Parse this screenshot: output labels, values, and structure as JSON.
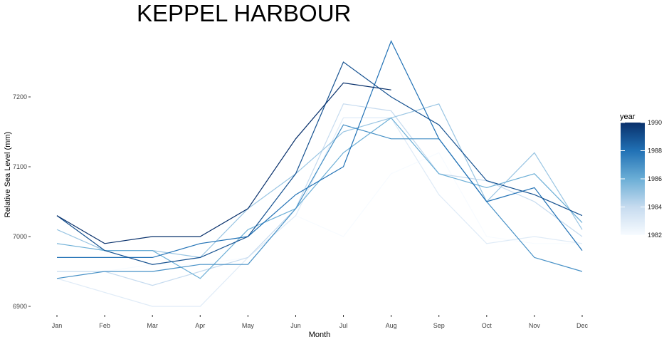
{
  "chart_data": {
    "type": "line",
    "title": "KEPPEL HARBOUR",
    "xlabel": "Month",
    "ylabel": "Relative Sea Level (mm)",
    "categories": [
      "Jan",
      "Feb",
      "Mar",
      "Apr",
      "May",
      "Jun",
      "Jul",
      "Aug",
      "Sep",
      "Oct",
      "Nov",
      "Dec"
    ],
    "ylim": [
      6890,
      7285
    ],
    "y_ticks": [
      6900,
      7000,
      7100,
      7200
    ],
    "grid": false,
    "legend": {
      "title": "year",
      "placement": "right",
      "type": "colorbar",
      "range": [
        1982,
        1990
      ],
      "ticks": [
        1982,
        1984,
        1986,
        1988,
        1990
      ],
      "colors": [
        "#f7fbff",
        "#c6dbef",
        "#6baed6",
        "#2171b5",
        "#08306b"
      ]
    },
    "series": [
      {
        "year": 1982,
        "values": [
          6950,
          6950,
          6960,
          6960,
          6970,
          7030,
          7000,
          7090,
          7120,
          7000,
          6990,
          6990
        ]
      },
      {
        "year": 1983,
        "values": [
          6940,
          6920,
          6900,
          6900,
          6970,
          7030,
          7170,
          7170,
          7060,
          6990,
          7000,
          6990
        ]
      },
      {
        "year": 1984,
        "values": [
          6950,
          6950,
          6930,
          6950,
          6970,
          7040,
          7190,
          7180,
          7090,
          7080,
          7050,
          7000
        ]
      },
      {
        "year": 1985,
        "values": [
          7010,
          6980,
          6980,
          6970,
          7040,
          7090,
          7150,
          7170,
          7190,
          7050,
          7120,
          7010
        ]
      },
      {
        "year": 1986,
        "values": [
          6990,
          6980,
          6980,
          6940,
          7010,
          7040,
          7120,
          7170,
          7090,
          7070,
          7090,
          7020
        ]
      },
      {
        "year": 1987,
        "values": [
          6940,
          6950,
          6950,
          6960,
          6960,
          7040,
          7160,
          7140,
          7140,
          7050,
          6970,
          6950
        ]
      },
      {
        "year": 1988,
        "values": [
          6970,
          6970,
          6970,
          6990,
          7000,
          7060,
          7100,
          7280,
          7140,
          7050,
          7070,
          6980
        ]
      },
      {
        "year": 1989,
        "values": [
          7030,
          6980,
          6960,
          6970,
          7000,
          7090,
          7250,
          7200,
          7160,
          7080,
          7060,
          7030
        ]
      },
      {
        "year": 1990,
        "values": [
          7030,
          6990,
          7000,
          7000,
          7040,
          7140,
          7220,
          7210,
          null,
          null,
          null,
          null
        ]
      }
    ]
  }
}
